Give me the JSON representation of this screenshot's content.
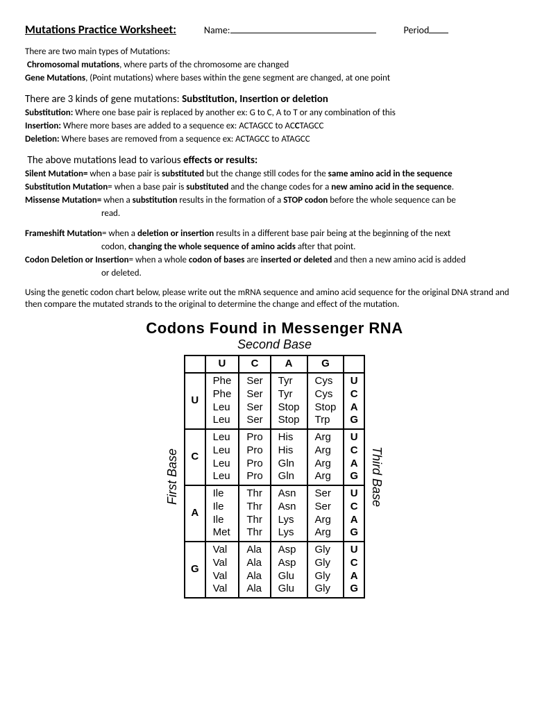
{
  "header": {
    "title": "Mutations Practice Worksheet:",
    "name_label": "Name:",
    "period_label": "Period"
  },
  "intro": {
    "line1": "There are two main types of Mutations:",
    "chrom_b": "Chromosomal mutations",
    "chrom_rest": ", where parts of the chromosome are changed",
    "gene_b": "Gene Mutations",
    "gene_rest": ", (Point mutations) where bases within the gene segment are changed, at one point"
  },
  "kinds": {
    "head_a": "There are 3 kinds of gene mutations:  ",
    "head_b": "Substitution, Insertion or deletion",
    "sub_b": "Substitution:",
    "sub_t": "  Where one base pair is replaced by another  ex:  G to C,   A to T or any combination of this",
    "ins_b": "Insertion:",
    "ins_t1": "  Where more bases are added to a sequence  ex:  ACTAGCC to AC",
    "ins_c": "C",
    "ins_t2": "TAGCC",
    "del_b": "Deletion:",
    "del_t": "  Where bases are removed from a sequence  ex:  ACTAGCC to ATAGCC"
  },
  "effects": {
    "head_a": "The above mutations lead to various ",
    "head_b": "effects or results:",
    "silent_b": "Silent Mutation=",
    "silent_t1": " when a base pair is ",
    "silent_b2": "substituted",
    "silent_t2": " but the change still codes for the ",
    "silent_b3": "same amino acid in the sequence",
    "subm_b": "Substitution Mutation",
    "subm_t1": "= when a base pair is ",
    "subm_b2": "substituted",
    "subm_t2": " and the change codes for a ",
    "subm_b3": "new amino acid in the sequence",
    "subm_t3": ".",
    "mis_b": "Missense Mutation=",
    "mis_t1": "  when a ",
    "mis_b2": "substitution",
    "mis_t2": " results in the formation of a ",
    "mis_b3": "STOP codon",
    "mis_t3": " before the whole sequence can be",
    "mis_t4": "read.",
    "fs_b": "Frameshift Mutation",
    "fs_t1": "= when a ",
    "fs_b2": "deletion or insertion",
    "fs_t2": " results in a different base pair being at the beginning of the next",
    "fs_t3": "codon, ",
    "fs_b3": "changing the whole sequence of amino acids",
    "fs_t4": " after that point.",
    "cdi_b": "Codon Deletion or Insertion",
    "cdi_t1": "= when a whole ",
    "cdi_b2": "codon of bases",
    "cdi_t2": " are ",
    "cdi_b3": "inserted or deleted",
    "cdi_t3": " and then a new amino acid is added",
    "cdi_t4": "or deleted."
  },
  "instruction": "Using the genetic codon chart below, please write out the mRNA sequence and amino acid sequence for the original DNA strand and then compare the mutated strands to the original to determine the change and effect of the mutation.",
  "codon": {
    "title": "Codons Found in Messenger RNA",
    "subtitle": "Second Base",
    "left_label": "First Base",
    "right_label": "Third Base",
    "second": [
      "U",
      "C",
      "A",
      "G"
    ],
    "third": [
      "U",
      "C",
      "A",
      "G"
    ],
    "rows": [
      {
        "first": "U",
        "cols": [
          [
            "Phe",
            "Phe",
            "Leu",
            "Leu"
          ],
          [
            "Ser",
            "Ser",
            "Ser",
            "Ser"
          ],
          [
            "Tyr",
            "Tyr",
            "Stop",
            "Stop"
          ],
          [
            "Cys",
            "Cys",
            "Stop",
            "Trp"
          ]
        ]
      },
      {
        "first": "C",
        "cols": [
          [
            "Leu",
            "Leu",
            "Leu",
            "Leu"
          ],
          [
            "Pro",
            "Pro",
            "Pro",
            "Pro"
          ],
          [
            "His",
            "His",
            "Gln",
            "Gln"
          ],
          [
            "Arg",
            "Arg",
            "Arg",
            "Arg"
          ]
        ]
      },
      {
        "first": "A",
        "cols": [
          [
            "Ile",
            "Ile",
            "Ile",
            "Met"
          ],
          [
            "Thr",
            "Thr",
            "Thr",
            "Thr"
          ],
          [
            "Asn",
            "Asn",
            "Lys",
            "Lys"
          ],
          [
            "Ser",
            "Ser",
            "Arg",
            "Arg"
          ]
        ]
      },
      {
        "first": "G",
        "cols": [
          [
            "Val",
            "Val",
            "Val",
            "Val"
          ],
          [
            "Ala",
            "Ala",
            "Ala",
            "Ala"
          ],
          [
            "Asp",
            "Asp",
            "Glu",
            "Glu"
          ],
          [
            "Gly",
            "Gly",
            "Gly",
            "Gly"
          ]
        ]
      }
    ]
  }
}
